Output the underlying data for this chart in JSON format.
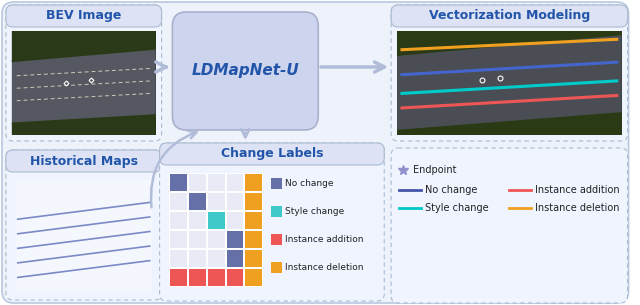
{
  "bg_facecolor": "#eef2fa",
  "bg_edgecolor": "#b8c8e0",
  "box_face_light": "#f5f7ff",
  "box_edge_dashed": "#aabbd0",
  "ldmap_face": "#cdd5ee",
  "ldmap_edge": "#aab0cc",
  "title_color": "#2255aa",
  "arrow_color": "#b0bcd8",
  "bev_title": "BEV Image",
  "hist_title": "Historical Maps",
  "ldmap_title": "LDMapNet-U",
  "vec_title": "Vectorization Modeling",
  "change_title": "Change Labels",
  "change_legend": [
    {
      "label": "No change",
      "color": "#6670a8"
    },
    {
      "label": "Style change",
      "color": "#3ec8c8"
    },
    {
      "label": "Instance addition",
      "color": "#ee5555"
    },
    {
      "label": "Instance deletion",
      "color": "#f0a020"
    }
  ],
  "matrix_colored": [
    [
      0,
      0,
      "#6670a8"
    ],
    [
      4,
      0,
      "#f0a020"
    ],
    [
      1,
      1,
      "#6670a8"
    ],
    [
      4,
      1,
      "#f0a020"
    ],
    [
      2,
      2,
      "#3ec8c8"
    ],
    [
      4,
      2,
      "#f0a020"
    ],
    [
      3,
      3,
      "#6670a8"
    ],
    [
      4,
      3,
      "#f0a020"
    ],
    [
      3,
      4,
      "#6670a8"
    ],
    [
      4,
      4,
      "#f0a020"
    ],
    [
      0,
      5,
      "#ee5555"
    ],
    [
      1,
      5,
      "#ee5555"
    ],
    [
      2,
      5,
      "#ee5555"
    ],
    [
      3,
      5,
      "#ee5555"
    ],
    [
      4,
      5,
      "#f0a020"
    ]
  ],
  "matrix_rows": 6,
  "matrix_cols": 5,
  "matrix_bg": "#e8eaf5",
  "line_legend": [
    {
      "label": "Endpoint",
      "color": "#9090c0",
      "type": "dot"
    },
    {
      "label": "No change",
      "color": "#4455aa",
      "type": "line"
    },
    {
      "label": "Style change",
      "color": "#00c8c8",
      "type": "line"
    },
    {
      "label": "Instance addition",
      "color": "#ee5555",
      "type": "line"
    },
    {
      "label": "Instance deletion",
      "color": "#f0a020",
      "type": "line"
    }
  ],
  "road_colors": {
    "vegetation": "#2d3a1a",
    "pavement": "#555860",
    "line_white": "#ddddcc"
  },
  "vec_line_colors": [
    "#f0a020",
    "#4466cc",
    "#00cccc",
    "#ee5555"
  ],
  "hist_line_color": "#6677bb"
}
